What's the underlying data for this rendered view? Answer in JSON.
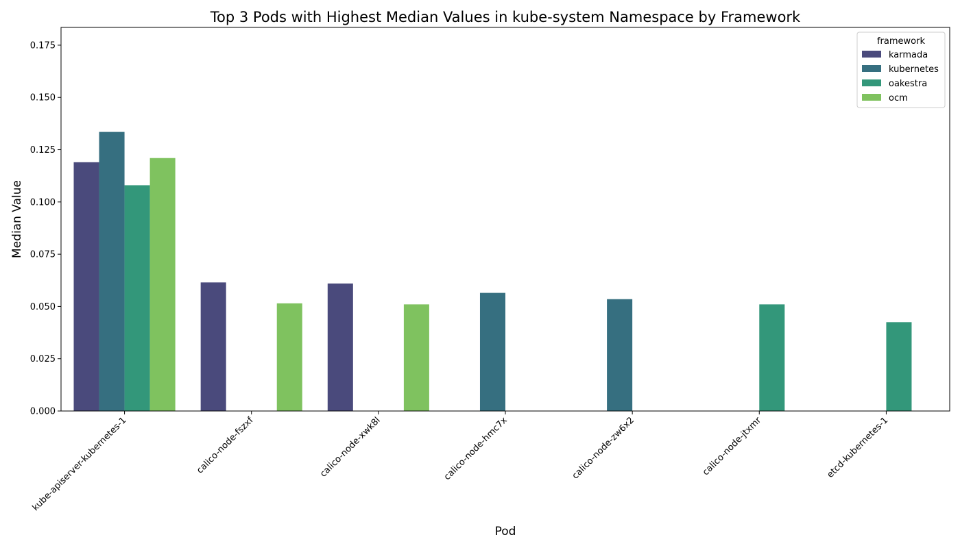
{
  "chart_data": {
    "type": "bar",
    "title": "Top 3 Pods with Highest Median Values in kube-system Namespace by Framework",
    "xlabel": "Pod",
    "ylabel": "Median Value",
    "ylim": [
      0,
      0.1835
    ],
    "yticks": [
      "0.000",
      "0.025",
      "0.050",
      "0.075",
      "0.100",
      "0.125",
      "0.150",
      "0.175"
    ],
    "categories": [
      "kube-apiserver-kubernetes-1",
      "calico-node-fszxf",
      "calico-node-xwk8l",
      "calico-node-hmc7x",
      "calico-node-zw6x2",
      "calico-node-jtxmr",
      "etcd-kubernetes-1"
    ],
    "series": [
      {
        "name": "karmada",
        "color": "#4a4a7c",
        "values": [
          0.119,
          0.0615,
          0.061,
          null,
          null,
          null,
          null
        ]
      },
      {
        "name": "kubernetes",
        "color": "#366f80",
        "values": [
          0.1335,
          null,
          null,
          0.0565,
          0.0535,
          null,
          null
        ]
      },
      {
        "name": "oakestra",
        "color": "#33977a",
        "values": [
          0.108,
          null,
          null,
          null,
          null,
          0.051,
          0.0425
        ]
      },
      {
        "name": "ocm",
        "color": "#7fc25f",
        "values": [
          0.121,
          0.0515,
          0.051,
          null,
          null,
          null,
          null
        ]
      }
    ],
    "legend": {
      "title": "framework",
      "placement": "top-right"
    },
    "grid": false
  }
}
